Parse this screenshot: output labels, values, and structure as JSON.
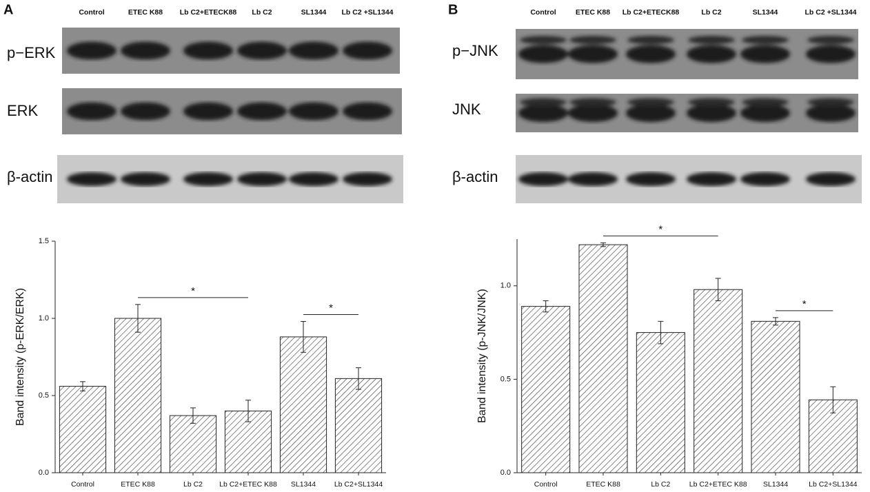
{
  "panels": [
    {
      "label": "A",
      "lanes": [
        "Control",
        "ETEC K88",
        "Lb C2+ETECK88",
        "Lb C2",
        "SL1344",
        "Lb C2 +SL1344"
      ],
      "rows": [
        "p−ERK",
        "ERK",
        "β-actin"
      ]
    },
    {
      "label": "B",
      "lanes": [
        "Control",
        "ETEC K88",
        "Lb C2+ETECK88",
        "Lb C2",
        "SL1344",
        "Lb C2 +SL1344"
      ],
      "rows": [
        "p−JNK",
        "JNK",
        "β-actin"
      ]
    }
  ],
  "chart_data": [
    {
      "type": "bar",
      "y_label": "Band intensity (p-ERK/ERK)",
      "categories": [
        "Control",
        "ETEC K88",
        "Lb C2",
        "Lb C2+ETEC K88",
        "SL1344",
        "Lb C2+SL1344"
      ],
      "values": [
        0.56,
        1.0,
        0.37,
        0.4,
        0.88,
        0.61
      ],
      "errors": [
        0.03,
        0.09,
        0.05,
        0.07,
        0.1,
        0.07
      ],
      "ylim": [
        0,
        1.5
      ],
      "yticks": [
        {
          "value": 0,
          "label": "0.0"
        },
        {
          "value": 0.5,
          "label": "0.5"
        },
        {
          "value": 1,
          "label": "1.0"
        },
        {
          "value": 1.5,
          "label": "1.5"
        }
      ],
      "significance": [
        {
          "between": [
            "ETEC K88",
            "Lb C2+ETEC K88"
          ],
          "label": "*"
        },
        {
          "between": [
            "SL1344",
            "Lb C2+SL1344"
          ],
          "label": "*"
        }
      ]
    },
    {
      "type": "bar",
      "y_label": "Band intensity (p-JNK/JNK)",
      "categories": [
        "Control",
        "ETEC K88",
        "Lb C2",
        "Lb C2+ETEC K88",
        "SL1344",
        "Lb C2+SL1344"
      ],
      "values": [
        0.89,
        1.22,
        0.75,
        0.98,
        0.81,
        0.39
      ],
      "errors": [
        0.03,
        0.01,
        0.06,
        0.06,
        0.02,
        0.07
      ],
      "ylim": [
        0,
        1.25
      ],
      "yticks": [
        {
          "value": 0,
          "label": "0.0"
        },
        {
          "value": 0.5,
          "label": "0.5"
        },
        {
          "value": 1,
          "label": "1.0"
        }
      ],
      "significance": [
        {
          "between": [
            "ETEC K88",
            "Lb C2+ETEC K88"
          ],
          "label": "*"
        },
        {
          "between": [
            "SL1344",
            "Lb C2+SL1344"
          ],
          "label": "*"
        }
      ]
    }
  ]
}
